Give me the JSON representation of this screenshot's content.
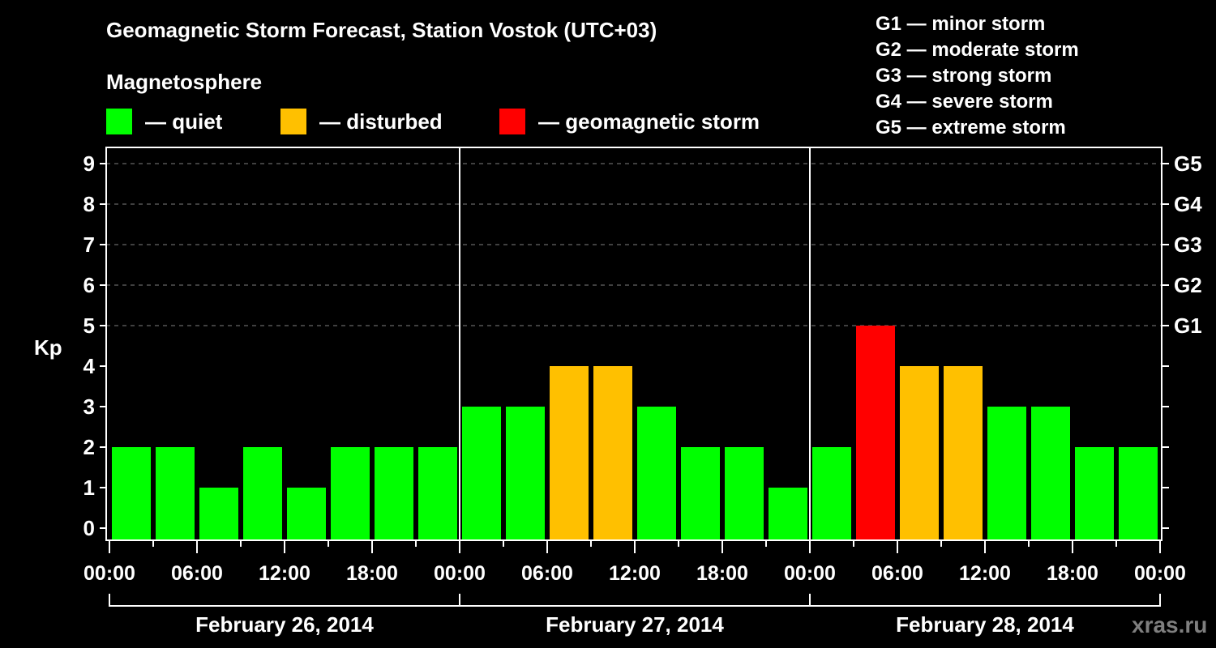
{
  "title": "Geomagnetic Storm Forecast, Station Vostok (UTC+03)",
  "subtitle": "Magnetosphere",
  "legend": [
    {
      "label": "— quiet",
      "color": "#00ff00"
    },
    {
      "label": "— disturbed",
      "color": "#ffc000"
    },
    {
      "label": "— geomagnetic storm",
      "color": "#ff0000"
    }
  ],
  "g_scale_legend": [
    "G1 — minor storm",
    "G2 — moderate storm",
    "G3 — strong storm",
    "G4 — severe storm",
    "G5 — extreme storm"
  ],
  "watermark": "xras.ru",
  "colors": {
    "quiet": "#00ff00",
    "disturbed": "#ffc000",
    "storm": "#ff0000",
    "grid": "#808080",
    "axis": "#ffffff",
    "background": "#000000"
  },
  "chart_data": {
    "type": "bar",
    "title": "Geomagnetic Storm Forecast, Station Vostok (UTC+03)",
    "xlabel": "",
    "ylabel": "Kp",
    "ylim": [
      0,
      9
    ],
    "yticks": [
      0,
      1,
      2,
      3,
      4,
      5,
      6,
      7,
      8,
      9
    ],
    "right_axis_labels": [
      {
        "value": 5,
        "label": "G1"
      },
      {
        "value": 6,
        "label": "G2"
      },
      {
        "value": 7,
        "label": "G3"
      },
      {
        "value": 8,
        "label": "G4"
      },
      {
        "value": 9,
        "label": "G5"
      }
    ],
    "grid": "dashed horizontal lines at Kp 5–9",
    "legend_position": "top",
    "days": [
      {
        "label": "February 26, 2014",
        "kp": [
          2,
          2,
          1,
          2,
          1,
          2,
          2,
          2
        ],
        "status": [
          "quiet",
          "quiet",
          "quiet",
          "quiet",
          "quiet",
          "quiet",
          "quiet",
          "quiet"
        ]
      },
      {
        "label": "February 27, 2014",
        "kp": [
          3,
          3,
          4,
          4,
          3,
          2,
          2,
          1
        ],
        "status": [
          "quiet",
          "quiet",
          "disturbed",
          "disturbed",
          "quiet",
          "quiet",
          "quiet",
          "quiet"
        ]
      },
      {
        "label": "February 28, 2014",
        "kp": [
          2,
          5,
          4,
          4,
          3,
          3,
          2,
          2
        ],
        "status": [
          "quiet",
          "storm",
          "disturbed",
          "disturbed",
          "quiet",
          "quiet",
          "quiet",
          "quiet"
        ]
      }
    ],
    "interval_hours": 3,
    "xtick_labels": [
      "00:00",
      "06:00",
      "12:00",
      "18:00",
      "00:00",
      "06:00",
      "12:00",
      "18:00",
      "00:00",
      "06:00",
      "12:00",
      "18:00",
      "00:00"
    ]
  }
}
